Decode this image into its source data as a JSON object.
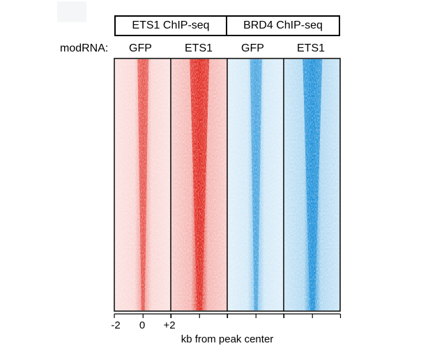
{
  "groups": [
    {
      "label": "ETS1 ChIP-seq"
    },
    {
      "label": "BRD4 ChIP-seq"
    }
  ],
  "row_label": "modRNA:",
  "columns": [
    "GFP",
    "ETS1",
    "GFP",
    "ETS1"
  ],
  "x_ticks": [
    "-2",
    "0",
    "+2"
  ],
  "xlabel": "kb from peak center",
  "colors": {
    "ets1_chip": "#e0241a",
    "brd4_chip": "#1a8fd8"
  },
  "chart_data": {
    "type": "heatmap",
    "title": "",
    "xlabel": "kb from peak center",
    "x_range_kb": [
      -2,
      2
    ],
    "x_ticks": [
      "-2",
      "0",
      "+2"
    ],
    "panels": [
      {
        "chip": "ETS1 ChIP-seq",
        "modRNA": "GFP",
        "color": "#e0241a",
        "relative_signal": 0.45
      },
      {
        "chip": "ETS1 ChIP-seq",
        "modRNA": "ETS1",
        "color": "#e0241a",
        "relative_signal": 1.0
      },
      {
        "chip": "BRD4 ChIP-seq",
        "modRNA": "GFP",
        "color": "#1a8fd8",
        "relative_signal": 0.5
      },
      {
        "chip": "BRD4 ChIP-seq",
        "modRNA": "ETS1",
        "color": "#1a8fd8",
        "relative_signal": 1.0
      }
    ],
    "rows_sorted_by": "signal descending"
  }
}
